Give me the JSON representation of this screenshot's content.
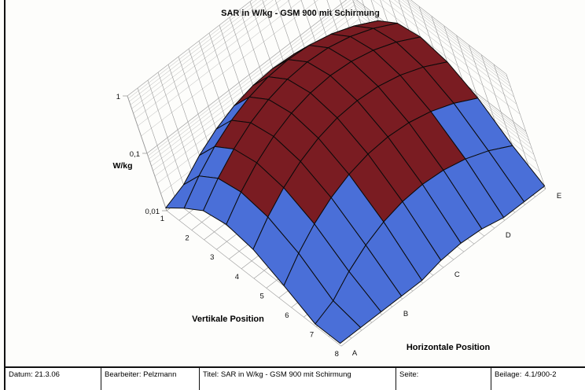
{
  "chart_data": {
    "type": "surface",
    "title": "SAR in W/kg - GSM 900 mit Schirmung",
    "zlabel": "W/kg",
    "xlabel": "Vertikale Position",
    "ylabel": "Horizontale Position",
    "z_ticks": [
      "1",
      "0,1",
      "0,01"
    ],
    "x_ticks": [
      "1",
      "2",
      "3",
      "4",
      "5",
      "6",
      "7",
      "8"
    ],
    "y_ticks": [
      "A",
      "B",
      "C",
      "D",
      "E"
    ],
    "z_scale": "log",
    "colors": {
      "above": "#7a1c22",
      "below": "#4a6fd8",
      "edge": "#0a0a0a"
    }
  },
  "footer": {
    "datum": "Datum: 21.3.06",
    "bearbeiter": "Bearbeiter: Pelzmann",
    "titel": "Titel: SAR in W/kg - GSM 900 mit Schirmung",
    "seite": "Seite:",
    "beilage_label": "Beilage:",
    "beilage_value": "4.1/900-2"
  }
}
